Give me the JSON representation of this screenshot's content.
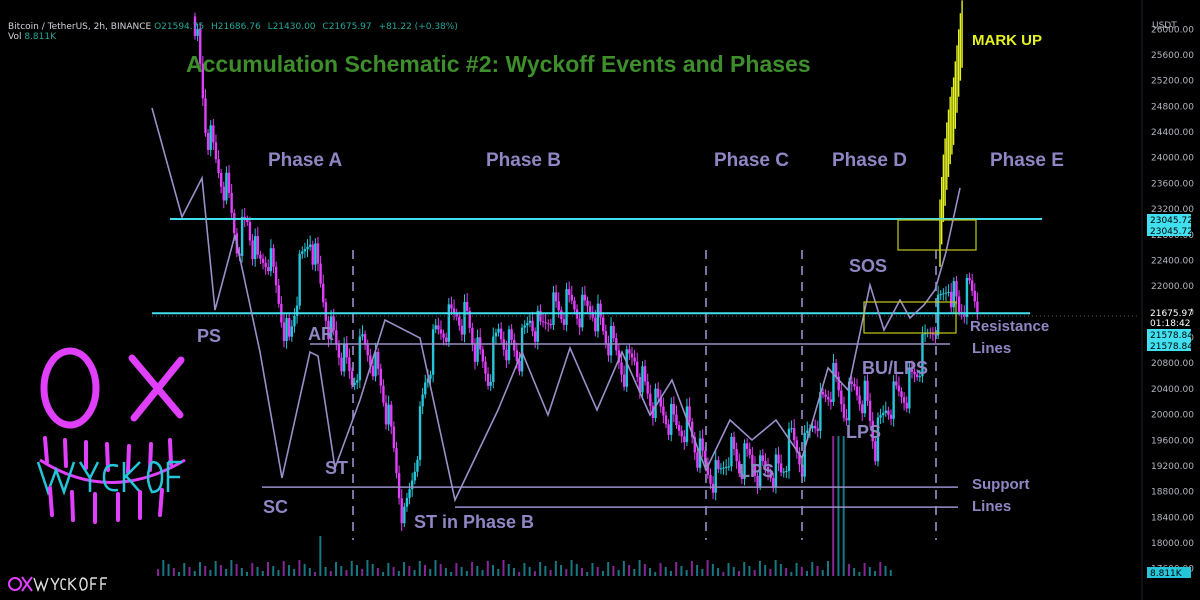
{
  "header": {
    "symbol": "Bitcoin / TetherUS, 2h, BINANCE",
    "open": "O21594.75",
    "high": "H21686.76",
    "low": "L21430.00",
    "close": "C21675.97",
    "change": "+81.22 (+0.38%)",
    "vol_label": "Vol",
    "vol_value": "8.811K"
  },
  "title": "Accumulation Schematic #2: Wyckoff Events and Phases",
  "logo_text": "OX WYCKOFF",
  "footer_logo": "OXWYCKOFF",
  "currency": "USDT",
  "price_badges": {
    "resistance_upper_a": "23045.72",
    "resistance_upper_b": "23045.72",
    "last_price": "21675.97",
    "countdown": "01:18:42",
    "resistance_lower_a": "21578.84",
    "resistance_lower_b": "21578.84",
    "volume": "8.811K"
  },
  "phases": [
    "Phase A",
    "Phase B",
    "Phase C",
    "Phase D",
    "Phase E"
  ],
  "events": {
    "ps": "PS",
    "sc": "SC",
    "ar": "AR",
    "st": "ST",
    "st_b": "ST in Phase B",
    "lps_c": "LPS",
    "lps_d": "LPS",
    "sos": "SOS",
    "bu_lps": "BU/LPS",
    "mark_up": "MARK UP"
  },
  "line_labels": {
    "resistance": "Resistance",
    "resistance2": "Lines",
    "support": "Support",
    "support2": "Lines"
  },
  "colors": {
    "up_candle": "#26c6da",
    "down_candle": "#e040fb",
    "resistance_line": "#40e0f0",
    "schematic": "#9a8fc9",
    "phase_text": "#8f86c4",
    "title": "#3e8e2c",
    "markup": "#e4f222"
  },
  "chart_data": {
    "type": "candlestick",
    "symbol": "BTCUSDT",
    "interval": "2h",
    "y_axis_ticks": [
      17600,
      18000,
      18400,
      18800,
      19200,
      19600,
      20000,
      20400,
      20800,
      21200,
      21600,
      22000,
      22400,
      22800,
      23200,
      23600,
      24000,
      24400,
      24800,
      25200,
      25600,
      26000
    ],
    "ylim": [
      17300,
      26300
    ],
    "last": {
      "open": 21594.75,
      "high": 21686.76,
      "low": 21430.0,
      "close": 21675.97
    },
    "horizontal_levels": {
      "upper_resistance": 23045.72,
      "lower_resistance": 21578.84,
      "ar_line": 21100,
      "support_upper": 18870,
      "support_lower": 18560
    },
    "price_path": [
      [
        0,
        26200
      ],
      [
        4,
        24500
      ],
      [
        8,
        23900
      ],
      [
        12,
        23500
      ],
      [
        16,
        22700
      ],
      [
        20,
        23000
      ],
      [
        24,
        22300
      ],
      [
        28,
        22500
      ],
      [
        32,
        21800
      ],
      [
        36,
        21100
      ],
      [
        40,
        22200
      ],
      [
        44,
        22800
      ],
      [
        48,
        22000
      ],
      [
        52,
        21300
      ],
      [
        56,
        20900
      ],
      [
        60,
        20500
      ],
      [
        64,
        21100
      ],
      [
        68,
        20900
      ],
      [
        72,
        20300
      ],
      [
        76,
        19400
      ],
      [
        80,
        18300
      ],
      [
        84,
        19300
      ],
      [
        88,
        20500
      ],
      [
        92,
        21200
      ],
      [
        96,
        21400
      ],
      [
        100,
        21600
      ],
      [
        104,
        21500
      ],
      [
        108,
        20900
      ],
      [
        112,
        20600
      ],
      [
        116,
        21300
      ],
      [
        120,
        21100
      ],
      [
        124,
        20900
      ],
      [
        128,
        21500
      ],
      [
        132,
        21300
      ],
      [
        136,
        21700
      ],
      [
        140,
        21600
      ],
      [
        144,
        21700
      ],
      [
        148,
        21600
      ],
      [
        152,
        21700
      ],
      [
        156,
        21300
      ],
      [
        160,
        21000
      ],
      [
        164,
        20700
      ],
      [
        168,
        20900
      ],
      [
        172,
        20400
      ],
      [
        176,
        20100
      ],
      [
        180,
        20000
      ],
      [
        184,
        19800
      ],
      [
        188,
        19900
      ],
      [
        192,
        19400
      ],
      [
        196,
        19100
      ],
      [
        200,
        19000
      ],
      [
        204,
        19500
      ],
      [
        208,
        19200
      ],
      [
        212,
        19300
      ],
      [
        216,
        19100
      ],
      [
        220,
        19200
      ],
      [
        224,
        19100
      ],
      [
        228,
        19600
      ],
      [
        232,
        19300
      ],
      [
        236,
        19900
      ],
      [
        240,
        20200
      ],
      [
        244,
        20500
      ],
      [
        248,
        20100
      ],
      [
        252,
        20400
      ],
      [
        256,
        20300
      ],
      [
        260,
        19500
      ],
      [
        264,
        20100
      ],
      [
        268,
        20300
      ],
      [
        272,
        20400
      ],
      [
        276,
        20700
      ],
      [
        280,
        21200
      ],
      [
        284,
        21600
      ],
      [
        288,
        22100
      ],
      [
        292,
        21600
      ],
      [
        296,
        21900
      ],
      [
        300,
        21700
      ]
    ],
    "markup_path": [
      [
        0,
        23000
      ],
      [
        2,
        23700
      ],
      [
        4,
        24200
      ],
      [
        6,
        24600
      ],
      [
        8,
        24900
      ],
      [
        10,
        25400
      ],
      [
        12,
        25900
      ],
      [
        14,
        26300
      ]
    ]
  }
}
